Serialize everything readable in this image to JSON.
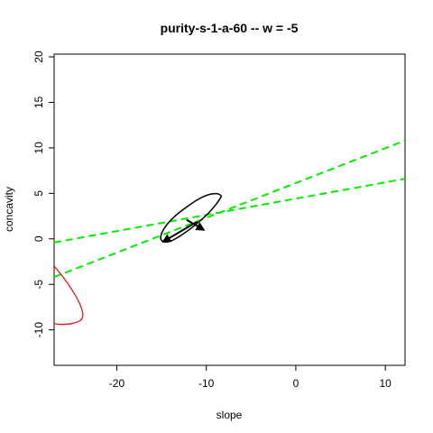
{
  "chart_data": {
    "type": "line",
    "title": "purity-s-1-a-60  -- w = -5",
    "xlabel": "slope",
    "ylabel": "concavity",
    "xlim": [
      -27,
      12.2
    ],
    "ylim": [
      -13.9,
      20.3
    ],
    "x_ticks": [
      -20,
      -10,
      0,
      10
    ],
    "x_tick_labels": [
      "-20",
      "-10",
      "0",
      "10"
    ],
    "y_ticks": [
      -10,
      -5,
      0,
      5,
      10,
      15,
      20
    ],
    "y_tick_labels": [
      "-10",
      "-5",
      "0",
      "5",
      "10",
      "15",
      "20"
    ],
    "grid": false,
    "legend": "none",
    "colors": {
      "ellipse": "#000000",
      "dashed": "#00ee00",
      "curve": "#ff0000",
      "arrow": "#000000"
    },
    "series": [
      {
        "style": "dashed",
        "color": "#00ee00",
        "x": [
          -27,
          12.2
        ],
        "y": [
          -0.4,
          6.6
        ]
      },
      {
        "style": "dashed",
        "color": "#00ee00",
        "x": [
          -27,
          12.2
        ],
        "y": [
          -4.2,
          10.8
        ]
      },
      {
        "style": "solid",
        "color": "#000000",
        "kind": "ellipse",
        "x": [
          -8.3,
          -8.7,
          -9.6,
          -10.8,
          -12.2,
          -13.5,
          -14.6,
          -15.1,
          -14.8,
          -14.0,
          -12.8,
          -11.4,
          -10.0,
          -8.9,
          -8.3
        ],
        "y": [
          4.7,
          4.95,
          4.9,
          4.4,
          3.5,
          2.5,
          1.3,
          0.2,
          -0.3,
          -0.25,
          0.4,
          1.4,
          2.6,
          3.8,
          4.7
        ]
      },
      {
        "style": "solid",
        "color": "#ff0000",
        "x": [
          -27,
          -26.0,
          -25.0,
          -24.2,
          -23.8,
          -24.0,
          -25.0,
          -26.3,
          -27
        ],
        "y": [
          -3.0,
          -4.2,
          -5.6,
          -7.0,
          -8.2,
          -8.9,
          -9.3,
          -9.4,
          -9.3
        ]
      },
      {
        "style": "arrow",
        "color": "#000000",
        "x": [
          -11.0,
          -14.8
        ],
        "y": [
          1.9,
          -0.3
        ]
      },
      {
        "style": "arrow",
        "color": "#000000",
        "x": [
          -12.2,
          -10.3
        ],
        "y": [
          2.1,
          1.0
        ]
      }
    ]
  }
}
